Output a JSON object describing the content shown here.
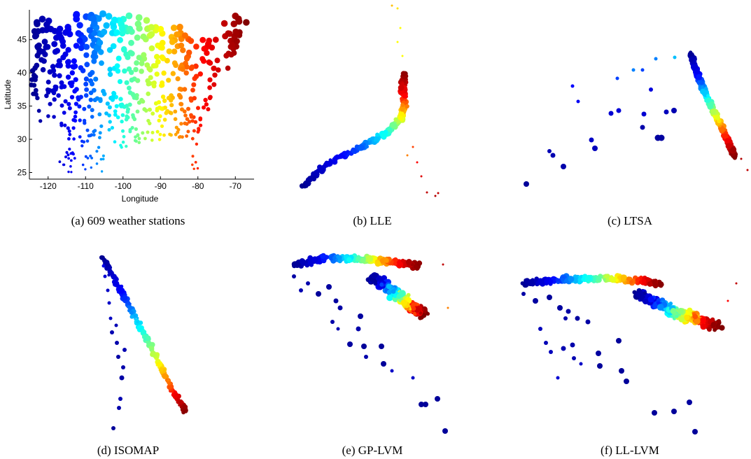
{
  "figure": {
    "captions": [
      "(a) 609 weather stations",
      "(b) LLE",
      "(c) LTSA",
      "(d) ISOMAP",
      "(e) GP-LVM",
      "(f) LL-LVM"
    ]
  },
  "colormap": [
    "#00008f",
    "#0000ff",
    "#00ffff",
    "#ffff00",
    "#ff0000",
    "#800000"
  ],
  "chart_data": [
    {
      "type": "scatter",
      "title": "",
      "xlabel": "Longitude",
      "ylabel": "Latitude",
      "xlim": [
        -125,
        -65
      ],
      "ylim": [
        24,
        49.5
      ],
      "xticks": [
        -120,
        -110,
        -100,
        -90,
        -80,
        -70
      ],
      "yticks": [
        25,
        30,
        35,
        40,
        45
      ],
      "xtick_labels": [
        "-120",
        "-110",
        "-100",
        "-90",
        "-80",
        "-70"
      ],
      "ytick_labels": [
        "25",
        "30",
        "35",
        "40",
        "45"
      ],
      "color_encodes": "longitude (jet colormap, west=dark blue, east=dark red)",
      "n_points": 609,
      "points_sample": [
        {
          "x": -123,
          "y": 48.5
        },
        {
          "x": -122,
          "y": 47.5
        },
        {
          "x": -120,
          "y": 46.5
        },
        {
          "x": -118,
          "y": 48
        },
        {
          "x": -117,
          "y": 45
        },
        {
          "x": -122,
          "y": 44
        },
        {
          "x": -123,
          "y": 42
        },
        {
          "x": -121,
          "y": 39
        },
        {
          "x": -120,
          "y": 37
        },
        {
          "x": -119,
          "y": 35
        },
        {
          "x": -117,
          "y": 33
        },
        {
          "x": -115,
          "y": 36
        },
        {
          "x": -112,
          "y": 34
        },
        {
          "x": -111,
          "y": 41
        },
        {
          "x": -108,
          "y": 44
        },
        {
          "x": -106,
          "y": 35
        },
        {
          "x": -104,
          "y": 40
        },
        {
          "x": -100,
          "y": 31
        },
        {
          "x": -98,
          "y": 28
        },
        {
          "x": -97,
          "y": 42
        },
        {
          "x": -95,
          "y": 38
        },
        {
          "x": -93,
          "y": 45
        },
        {
          "x": -90,
          "y": 35
        },
        {
          "x": -88,
          "y": 41
        },
        {
          "x": -87,
          "y": 31
        },
        {
          "x": -85,
          "y": 39
        },
        {
          "x": -84,
          "y": 34
        },
        {
          "x": -82,
          "y": 28
        },
        {
          "x": -80,
          "y": 26
        },
        {
          "x": -81,
          "y": 37
        },
        {
          "x": -78,
          "y": 40
        },
        {
          "x": -77,
          "y": 36
        },
        {
          "x": -75,
          "y": 42
        },
        {
          "x": -73,
          "y": 41
        },
        {
          "x": -71,
          "y": 44
        },
        {
          "x": -69,
          "y": 45.5
        },
        {
          "x": -72,
          "y": 44
        },
        {
          "x": -76,
          "y": 38
        }
      ]
    },
    {
      "type": "scatter",
      "caption_ref": 1,
      "axes": "none",
      "description_points": "2-D LLE embedding of the stations, colored by longitude"
    },
    {
      "type": "scatter",
      "caption_ref": 2,
      "axes": "none",
      "description_points": "2-D LTSA embedding of the stations, colored by longitude"
    },
    {
      "type": "scatter",
      "caption_ref": 3,
      "axes": "none",
      "description_points": "2-D ISOMAP embedding of the stations, colored by longitude"
    },
    {
      "type": "scatter",
      "caption_ref": 4,
      "axes": "none",
      "description_points": "2-D GP-LVM embedding of the stations, colored by longitude"
    },
    {
      "type": "scatter",
      "caption_ref": 5,
      "axes": "none",
      "description_points": "2-D LL-LVM embedding of the stations, colored by longitude"
    }
  ]
}
